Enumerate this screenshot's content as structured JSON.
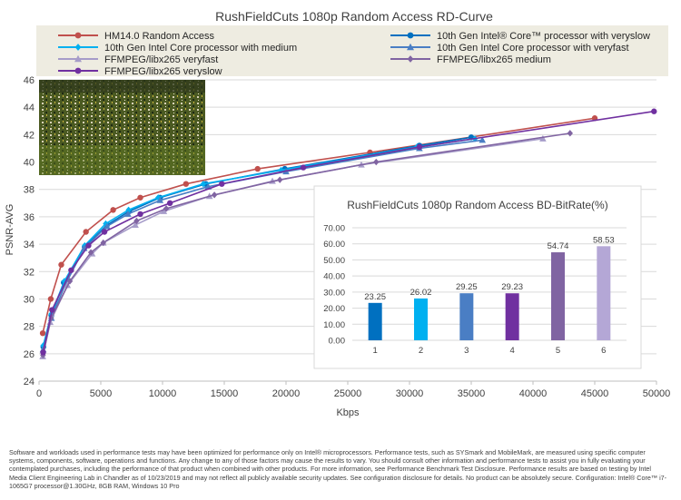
{
  "chart_data": [
    {
      "type": "line",
      "title": "RushFieldCuts 1080p Random Access RD-Curve",
      "xlabel": "Kbps",
      "ylabel": "PSNR-AVG",
      "xlim": [
        0,
        50000
      ],
      "ylim": [
        24,
        46
      ],
      "x_ticks": [
        0,
        5000,
        10000,
        15000,
        20000,
        25000,
        30000,
        35000,
        40000,
        45000,
        50000
      ],
      "y_ticks": [
        24,
        26,
        28,
        30,
        32,
        34,
        36,
        38,
        40,
        42,
        44,
        46
      ],
      "grid": "horizontal",
      "legend_position": "top",
      "series": [
        {
          "name": "HM14.0 Random Access",
          "color": "#c0504d",
          "marker": "circle",
          "x": [
            300,
            950,
            1800,
            3800,
            6000,
            8200,
            11900,
            17700,
            26800,
            45000
          ],
          "y": [
            27.5,
            30.0,
            32.5,
            34.9,
            36.5,
            37.4,
            38.4,
            39.5,
            40.7,
            43.2
          ]
        },
        {
          "name": "10th Gen Intel® Core™ processor with veryslow",
          "color": "#0070c0",
          "marker": "circle",
          "x": [
            350,
            1000,
            2000,
            3700,
            5500,
            7300,
            9800,
            13500,
            19900,
            30800,
            35000
          ],
          "y": [
            26.5,
            28.8,
            31.2,
            33.8,
            35.4,
            36.4,
            37.4,
            38.4,
            39.5,
            41.2,
            41.8
          ]
        },
        {
          "name": "10th Gen Intel Core processor with medium",
          "color": "#00b0f0",
          "marker": "diamond",
          "x": [
            340,
            990,
            2050,
            3700,
            5400,
            7250,
            9650,
            13300,
            19600,
            30600,
            35300
          ],
          "y": [
            26.6,
            28.9,
            31.3,
            33.9,
            35.5,
            36.5,
            37.4,
            38.4,
            39.4,
            41.1,
            41.7
          ]
        },
        {
          "name": "10th Gen Intel Core processor with veryfast",
          "color": "#4a7ec4",
          "marker": "triangle",
          "x": [
            330,
            1000,
            2100,
            3650,
            5500,
            7200,
            9800,
            13700,
            20000,
            30800,
            35900
          ],
          "y": [
            26.3,
            28.6,
            31.0,
            33.7,
            35.3,
            36.2,
            37.2,
            38.2,
            39.3,
            41.0,
            41.6
          ]
        },
        {
          "name": "FFMPEG/libx265 veryfast",
          "color": "#a69cc9",
          "marker": "triangle",
          "x": [
            300,
            900,
            2300,
            4300,
            5200,
            7800,
            10100,
            13800,
            18900,
            26100,
            40800
          ],
          "y": [
            25.8,
            28.3,
            31.0,
            33.3,
            34.1,
            35.4,
            36.4,
            37.5,
            38.6,
            39.8,
            41.7
          ]
        },
        {
          "name": "FFMPEG/libx265 medium",
          "color": "#8064a2",
          "marker": "diamond",
          "x": [
            320,
            980,
            2500,
            4200,
            5200,
            7900,
            10300,
            14200,
            19500,
            27300,
            43000
          ],
          "y": [
            25.9,
            28.6,
            31.3,
            33.4,
            34.1,
            35.7,
            36.6,
            37.6,
            38.7,
            40.0,
            42.1
          ]
        },
        {
          "name": "FFMPEG/libx265 veryslow",
          "color": "#7030a0",
          "marker": "circle",
          "x": [
            330,
            1050,
            2600,
            4000,
            5300,
            8200,
            10600,
            14800,
            21400,
            30800,
            49800
          ],
          "y": [
            26.1,
            29.2,
            32.1,
            33.9,
            34.9,
            36.2,
            37.0,
            38.4,
            39.6,
            41.1,
            43.7
          ]
        }
      ]
    },
    {
      "type": "bar",
      "title": "RushFieldCuts 1080p Random Access BD-BitRate(%)",
      "categories": [
        "1",
        "2",
        "3",
        "4",
        "5",
        "6"
      ],
      "values": [
        23.25,
        26.02,
        29.25,
        29.23,
        54.74,
        58.53
      ],
      "value_labels": [
        "23.25",
        "26.02",
        "29.25",
        "29.23",
        "54.74",
        "58.53"
      ],
      "colors": [
        "#0070c0",
        "#00b0f0",
        "#4a7ec4",
        "#7030a0",
        "#8064a2",
        "#b4a7d6"
      ],
      "ylim": [
        0,
        70
      ],
      "y_ticks": [
        "0.00",
        "10.00",
        "20.00",
        "30.00",
        "40.00",
        "50.00",
        "60.00",
        "70.00"
      ],
      "grid": "horizontal",
      "legend": "none"
    }
  ],
  "footer_text": "Software and workloads used in performance tests may have been optimized for performance only on Intel® microprocessors. Performance tests, such as SYSmark and MobileMark, are measured using specific computer systems, components, software, operations and functions. Any change to any of those factors may cause the results to vary. You should consult other information and performance tests to assist you in fully evaluating your contemplated purchases, including the performance of that product when combined with other products. For more information, see Performance Benchmark Test Disclosure. Performance results are based on testing by Intel Media Client Engineering Lab in Chandler as of 10/23/2019 and may not reflect all publicly available security updates. See configuration disclosure for details. No product can be absolutely secure. Configuration: Intel® Core™ i7-1065G7 processor@1.30GHz, 8GB RAM, Windows 10 Pro",
  "colors": {
    "legend_bg": "#eeece1",
    "grid": "#d9d9d9",
    "axis": "#bfbfbf"
  },
  "inset_photo": {
    "icon": "stadium-crowd-photo"
  }
}
